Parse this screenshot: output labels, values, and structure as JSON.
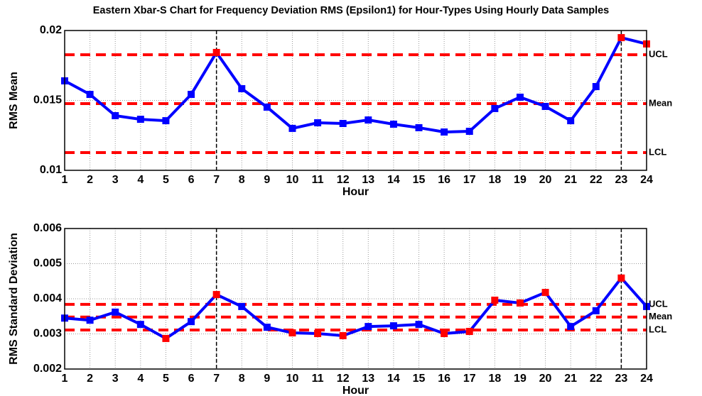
{
  "chart_data": [
    {
      "type": "line",
      "title": "Eastern Xbar-S Chart for Frequency Deviation RMS (Epsilon1) for Hour-Types Using Hourly Data Samples",
      "x_label": "Hour",
      "y_label": "RMS Mean",
      "x": [
        1,
        2,
        3,
        4,
        5,
        6,
        7,
        8,
        9,
        10,
        11,
        12,
        13,
        14,
        15,
        16,
        17,
        18,
        19,
        20,
        21,
        22,
        23,
        24
      ],
      "values": [
        0.0164,
        0.01543,
        0.01391,
        0.01365,
        0.01355,
        0.01543,
        0.01843,
        0.01584,
        0.01452,
        0.013,
        0.0134,
        0.01335,
        0.0136,
        0.0133,
        0.01305,
        0.01274,
        0.01279,
        0.01442,
        0.01523,
        0.01457,
        0.01355,
        0.01599,
        0.01949,
        0.01904
      ],
      "color": "#0000ff",
      "marker_colors": [
        "#0000ff",
        "#0000ff",
        "#0000ff",
        "#0000ff",
        "#0000ff",
        "#0000ff",
        "#ff0000",
        "#0000ff",
        "#0000ff",
        "#0000ff",
        "#0000ff",
        "#0000ff",
        "#0000ff",
        "#0000ff",
        "#0000ff",
        "#0000ff",
        "#0000ff",
        "#0000ff",
        "#0000ff",
        "#0000ff",
        "#0000ff",
        "#0000ff",
        "#ff0000",
        "#ff0000"
      ],
      "control_lines": [
        {
          "label": "UCL",
          "value": 0.01827
        },
        {
          "label": "Mean",
          "value": 0.01477
        },
        {
          "label": "LCL",
          "value": 0.01127
        }
      ],
      "control_color": "#ff0000",
      "vlines": [
        7,
        23
      ],
      "xlim": [
        1,
        24
      ],
      "xticks": [
        1,
        2,
        3,
        4,
        5,
        6,
        7,
        8,
        9,
        10,
        11,
        12,
        13,
        14,
        15,
        16,
        17,
        18,
        19,
        20,
        21,
        22,
        23,
        24
      ],
      "ylim": [
        0.01,
        0.02
      ],
      "yticks": [
        0.01,
        0.015,
        0.02
      ],
      "grid": true
    },
    {
      "type": "line",
      "x_label": "Hour",
      "y_label": "RMS Standard Deviation",
      "x": [
        1,
        2,
        3,
        4,
        5,
        6,
        7,
        8,
        9,
        10,
        11,
        12,
        13,
        14,
        15,
        16,
        17,
        18,
        19,
        20,
        21,
        22,
        23,
        24
      ],
      "values": [
        0.00345,
        0.00339,
        0.00362,
        0.00327,
        0.00287,
        0.00335,
        0.00412,
        0.00378,
        0.00319,
        0.00303,
        0.00301,
        0.00295,
        0.00321,
        0.00323,
        0.00327,
        0.00301,
        0.00307,
        0.00396,
        0.00388,
        0.00418,
        0.00321,
        0.00366,
        0.00459,
        0.00378
      ],
      "color": "#0000ff",
      "marker_colors": [
        "#0000ff",
        "#0000ff",
        "#0000ff",
        "#0000ff",
        "#ff0000",
        "#0000ff",
        "#ff0000",
        "#0000ff",
        "#0000ff",
        "#ff0000",
        "#ff0000",
        "#ff0000",
        "#0000ff",
        "#0000ff",
        "#0000ff",
        "#ff0000",
        "#ff0000",
        "#ff0000",
        "#ff0000",
        "#ff0000",
        "#0000ff",
        "#0000ff",
        "#ff0000",
        "#0000ff"
      ],
      "control_lines": [
        {
          "label": "UCL",
          "value": 0.00384
        },
        {
          "label": "Mean",
          "value": 0.00348
        },
        {
          "label": "LCL",
          "value": 0.00311
        }
      ],
      "control_color": "#ff0000",
      "vlines": [
        7,
        23
      ],
      "xlim": [
        1,
        24
      ],
      "xticks": [
        1,
        2,
        3,
        4,
        5,
        6,
        7,
        8,
        9,
        10,
        11,
        12,
        13,
        14,
        15,
        16,
        17,
        18,
        19,
        20,
        21,
        22,
        23,
        24
      ],
      "ylim": [
        0.002,
        0.006
      ],
      "yticks": [
        0.002,
        0.003,
        0.004,
        0.005,
        0.006
      ],
      "grid": true
    }
  ]
}
